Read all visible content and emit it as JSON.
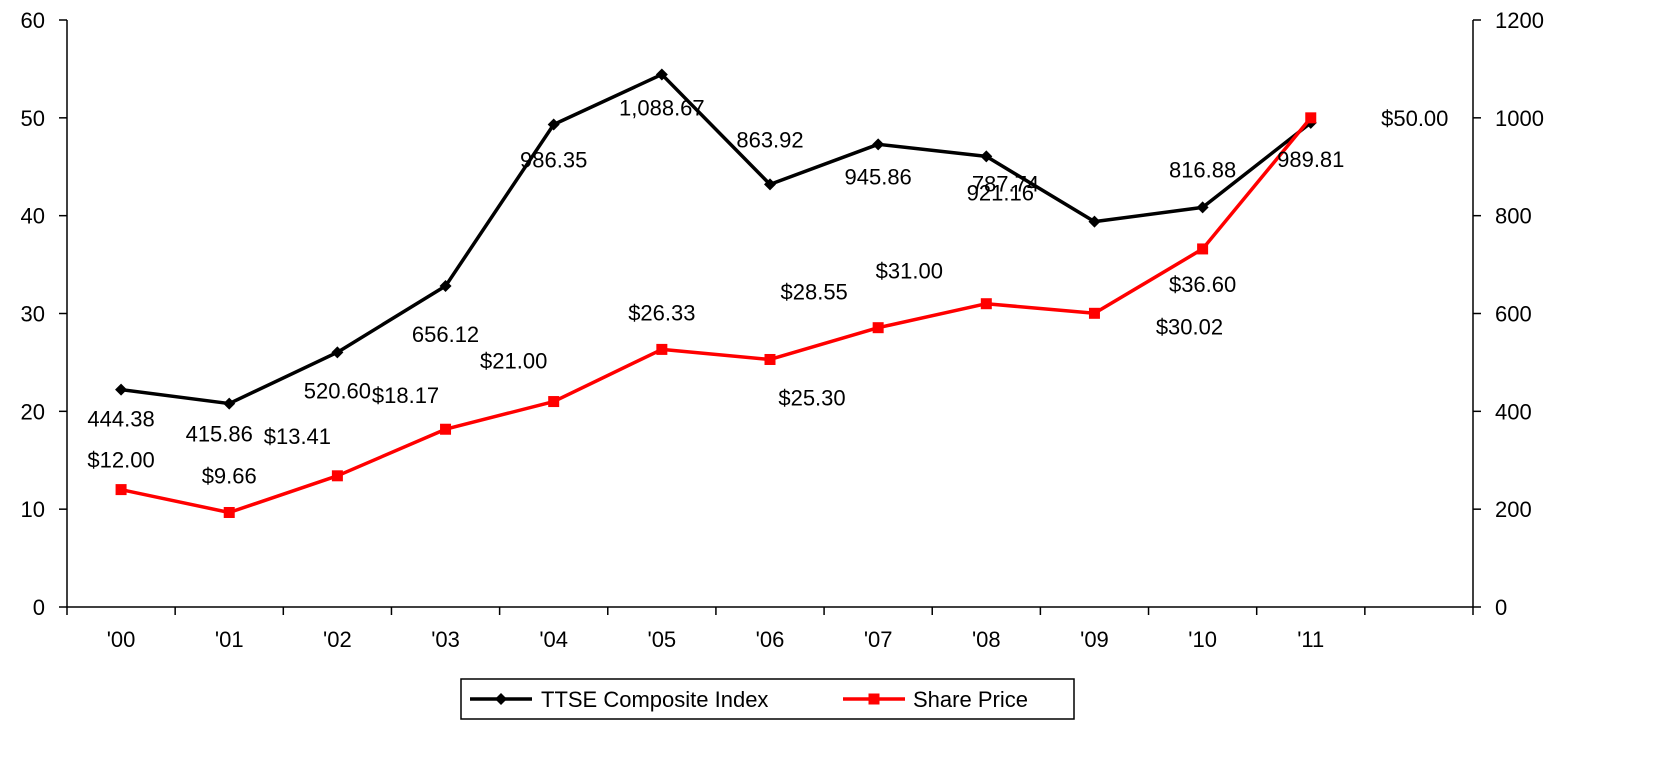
{
  "chart_data": {
    "type": "line",
    "categories": [
      "'00",
      "'01",
      "'02",
      "'03",
      "'04",
      "'05",
      "'06",
      "'07",
      "'08",
      "'09",
      "'10",
      "'11"
    ],
    "y_left": {
      "ylim": [
        0,
        60
      ],
      "ticks": [
        0,
        10,
        20,
        30,
        40,
        50,
        60
      ],
      "tick_labels": [
        "0",
        "10",
        "20",
        "30",
        "40",
        "50",
        "60"
      ]
    },
    "y_right": {
      "ylim": [
        0,
        1200
      ],
      "ticks": [
        0,
        200,
        400,
        600,
        800,
        1000,
        1200
      ],
      "tick_labels": [
        "0",
        "200",
        "400",
        "600",
        "800",
        "1000",
        "1200"
      ]
    },
    "series": [
      {
        "name": "TTSE Composite Index",
        "axis": "right",
        "color": "#000000",
        "marker": "diamond",
        "values": [
          444.38,
          415.86,
          520.6,
          656.12,
          986.35,
          1088.67,
          863.92,
          945.86,
          921.16,
          787.74,
          816.88,
          989.81
        ],
        "labels": [
          "444.38",
          "415.86",
          "520.60",
          "656.12",
          "986.35",
          "1,088.67",
          "863.92",
          "945.86",
          "921.16",
          "787.74",
          "816.88",
          "989.81"
        ]
      },
      {
        "name": "Share Price",
        "axis": "left",
        "color": "#ff0000",
        "marker": "square",
        "values": [
          12.0,
          9.66,
          13.41,
          18.17,
          21.0,
          26.33,
          25.3,
          28.55,
          31.0,
          30.02,
          36.6,
          50.0
        ],
        "labels": [
          "$12.00",
          "$9.66",
          "$13.41",
          "$18.17",
          "$21.00",
          "$26.33",
          "$25.30",
          "$28.55",
          "$31.00",
          "$30.02",
          "$36.60",
          "$50.00"
        ]
      }
    ],
    "grid": false,
    "legend": "bottom"
  }
}
